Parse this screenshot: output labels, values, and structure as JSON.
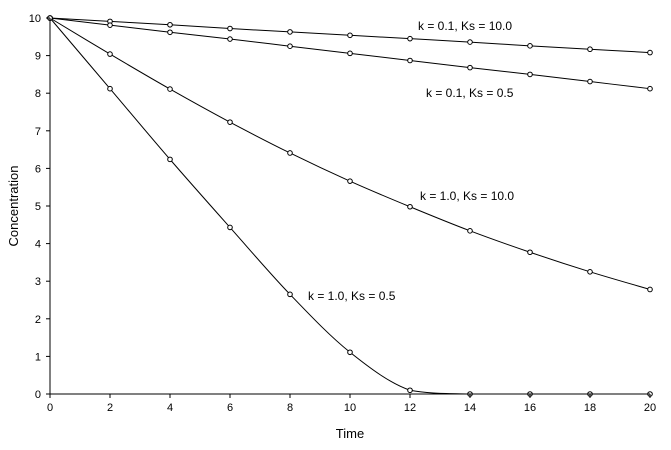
{
  "chart_data": {
    "type": "line",
    "title": "",
    "xlabel": "Time",
    "ylabel": "Concentration",
    "xlim": [
      0,
      20
    ],
    "ylim": [
      0,
      10
    ],
    "x_ticks": [
      "0",
      "2",
      "4",
      "6",
      "8",
      "10",
      "12",
      "14",
      "16",
      "18",
      "20"
    ],
    "y_ticks": [
      "0",
      "1",
      "2",
      "3",
      "4",
      "5",
      "6",
      "7",
      "8",
      "9",
      "10"
    ],
    "grid": false,
    "legend": "none",
    "colors": {
      "line": "#000000",
      "marker_fill": "#ffffff"
    },
    "series": [
      {
        "annotation": "k = 0.1, Ks = 10.0",
        "x": [
          0,
          2,
          4,
          6,
          8,
          10,
          12,
          14,
          16,
          18,
          20
        ],
        "y": [
          10,
          9.91,
          9.82,
          9.72,
          9.63,
          9.54,
          9.45,
          9.36,
          9.26,
          9.17,
          9.08
        ]
      },
      {
        "annotation": "k = 0.1, Ks = 0.5",
        "x": [
          0,
          2,
          4,
          6,
          8,
          10,
          12,
          14,
          16,
          18,
          20
        ],
        "y": [
          10,
          9.81,
          9.62,
          9.44,
          9.25,
          9.06,
          8.87,
          8.68,
          8.5,
          8.31,
          8.12
        ]
      },
      {
        "annotation": "k = 1.0, Ks = 10.0",
        "x": [
          0,
          2,
          4,
          6,
          8,
          10,
          12,
          14,
          16,
          18,
          20
        ],
        "y": [
          10,
          9.04,
          8.11,
          7.23,
          6.41,
          5.66,
          4.98,
          4.34,
          3.77,
          3.25,
          2.78
        ]
      },
      {
        "annotation": "k = 1.0, Ks = 0.5",
        "x": [
          0,
          2,
          4,
          6,
          8,
          10,
          12,
          14,
          16,
          18,
          20
        ],
        "y": [
          10,
          8.12,
          6.24,
          4.43,
          2.65,
          1.11,
          0.1,
          0,
          0,
          0,
          0
        ]
      }
    ]
  }
}
